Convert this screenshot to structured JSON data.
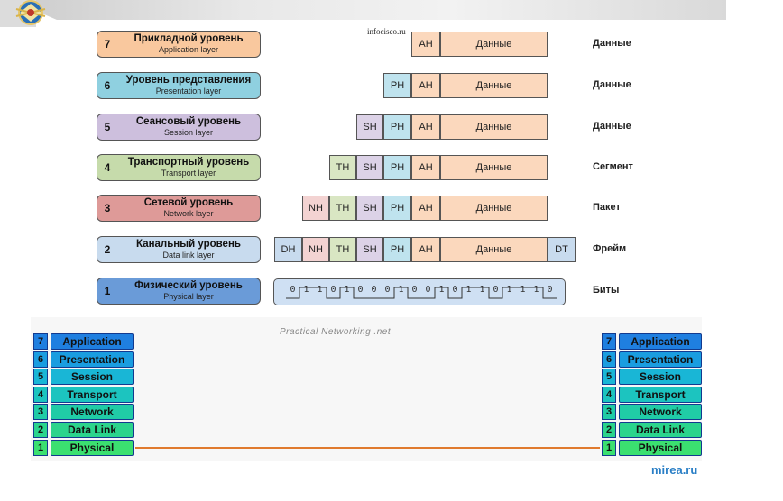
{
  "watermark_top": "infocisco.ru",
  "osi_layers": [
    {
      "num": "7",
      "ru": "Прикладной уровень",
      "en": "Application layer",
      "pdu": "Данные",
      "color": "#f9c89e"
    },
    {
      "num": "6",
      "ru": "Уровень представления",
      "en": "Presentation layer",
      "pdu": "Данные",
      "color": "#8fd0e0"
    },
    {
      "num": "5",
      "ru": "Сеансовый уровень",
      "en": "Session layer",
      "pdu": "Данные",
      "color": "#cdbfdd"
    },
    {
      "num": "4",
      "ru": "Транспортный уровень",
      "en": "Transport layer",
      "pdu": "Сегмент",
      "color": "#c6dbab"
    },
    {
      "num": "3",
      "ru": "Сетевой уровень",
      "en": "Network layer",
      "pdu": "Пакет",
      "color": "#de9a98"
    },
    {
      "num": "2",
      "ru": "Канальный уровень",
      "en": "Data link layer",
      "pdu": "Фрейм",
      "color": "#c8dbee"
    },
    {
      "num": "1",
      "ru": "Физический уровень",
      "en": "Physical layer",
      "pdu": "Биты",
      "color": "#6a9bd8"
    }
  ],
  "headers": {
    "dh": "DH",
    "nh": "NH",
    "th": "TH",
    "sh": "SH",
    "ph": "PH",
    "ah": "AH",
    "data": "Данные",
    "dt": "DT"
  },
  "bits": [
    "0",
    "1",
    "1",
    "0",
    "1",
    "0",
    "0",
    "0",
    "1",
    "0",
    "0",
    "1",
    "0",
    "1",
    "1",
    "0",
    "1",
    "1",
    "1",
    "0"
  ],
  "practical_networking": "Practical Networking .net",
  "pn_layers": [
    {
      "num": "7",
      "name": "Application",
      "color": "#1f7fe0"
    },
    {
      "num": "6",
      "name": "Presentation",
      "color": "#1a9de0"
    },
    {
      "num": "5",
      "name": "Session",
      "color": "#19b6d6"
    },
    {
      "num": "4",
      "name": "Transport",
      "color": "#1cc4bf"
    },
    {
      "num": "3",
      "name": "Network",
      "color": "#20cca6"
    },
    {
      "num": "2",
      "name": "Data Link",
      "color": "#2bd48c"
    },
    {
      "num": "1",
      "name": "Physical",
      "color": "#3be070"
    }
  ],
  "footer": "mirea.ru"
}
